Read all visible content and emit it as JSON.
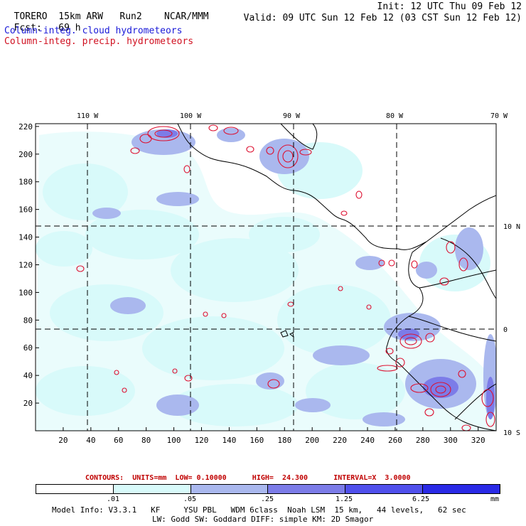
{
  "header": {
    "model": "TORERO",
    "resolution": "15km ARW",
    "run": "Run2",
    "org": "NCAR/MMM",
    "init": "Init: 12 UTC Thu 09 Feb 12",
    "fcst_label": "Fcst:",
    "fcst_value": "69 h",
    "valid": "Valid: 09 UTC Sun 12 Feb 12 (03 CST Sun 12 Feb 12)"
  },
  "fields": {
    "cloud": "Column-integ. cloud hydrometeors",
    "precip": "Column-integ. precip. hydrometeors"
  },
  "axes": {
    "lon_labels": [
      "110 W",
      "100 W",
      "90 W",
      "80 W",
      "70 W"
    ],
    "lat_labels": [
      "10 N",
      "0",
      "10 S"
    ],
    "x_ticks": [
      "20",
      "40",
      "60",
      "80",
      "100",
      "120",
      "140",
      "160",
      "180",
      "200",
      "220",
      "240",
      "260",
      "280",
      "300",
      "320"
    ],
    "y_ticks": [
      "220",
      "200",
      "180",
      "160",
      "140",
      "120",
      "100",
      "80",
      "60",
      "40",
      "20"
    ]
  },
  "contours": {
    "caption": "CONTOURS:  UNITS=mm  LOW= 0.10000      HIGH=  24.300      INTERVAL=X  3.0000"
  },
  "colorbar": {
    "colors": [
      "#ffffff",
      "#d8fafa",
      "#aab8ee",
      "#7c7ce8",
      "#5050ec",
      "#2a2ae6"
    ],
    "labels": [
      ".01",
      ".05",
      ".25",
      "1.25",
      "6.25"
    ],
    "units": "mm"
  },
  "colors": {
    "precip_contour": "#dd1030",
    "cloud_light": "#d8fafa",
    "cloud_mid": "#aab8ee",
    "cloud_dark": "#7c7ce8"
  },
  "model_info": {
    "line1": "Model Info: V3.3.1   KF     YSU PBL   WDM 6class  Noah LSM  15 km,   44 levels,   62 sec",
    "line2": "LW: Godd SW: Goddard DIFF: simple KM: 2D Smagor"
  }
}
